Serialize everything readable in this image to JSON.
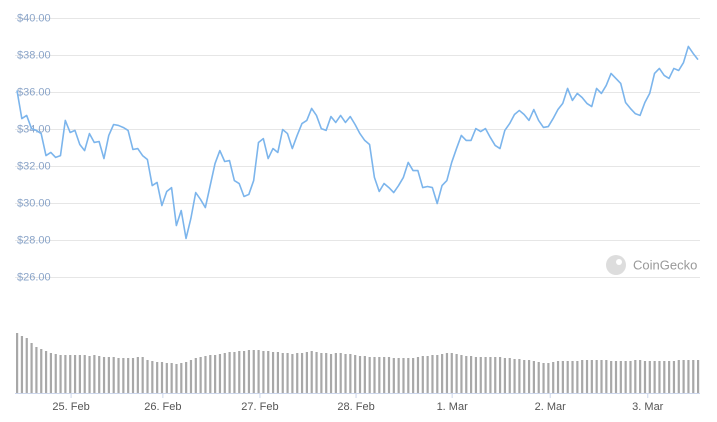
{
  "chart_data": {
    "type": "line",
    "watermark": "CoinGecko",
    "ylim": [
      25,
      41
    ],
    "yticks": [
      {
        "value": 26,
        "label": "$26.00"
      },
      {
        "value": 28,
        "label": "$28.00"
      },
      {
        "value": 30,
        "label": "$30.00"
      },
      {
        "value": 32,
        "label": "$32.00"
      },
      {
        "value": 34,
        "label": "$34.00"
      },
      {
        "value": 36,
        "label": "$36.00"
      },
      {
        "value": 38,
        "label": "$38.00"
      },
      {
        "value": 40,
        "label": "$40.00"
      }
    ],
    "xlim": [
      0,
      141
    ],
    "xticks": [
      {
        "value": 11.2,
        "label": "25. Feb"
      },
      {
        "value": 30.2,
        "label": "26. Feb"
      },
      {
        "value": 50.3,
        "label": "27. Feb"
      },
      {
        "value": 70.2,
        "label": "28. Feb"
      },
      {
        "value": 90.1,
        "label": "1. Mar"
      },
      {
        "value": 110.4,
        "label": "2. Mar"
      },
      {
        "value": 130.6,
        "label": "3. Mar"
      }
    ],
    "grid": true,
    "y2lim": [
      0,
      70
    ],
    "series": [
      {
        "color": "#7cb5ec",
        "values": [
          36.11,
          34.59,
          34.76,
          34.05,
          33.95,
          33.78,
          32.59,
          32.76,
          32.49,
          32.59,
          34.49,
          33.84,
          33.95,
          33.19,
          32.86,
          33.78,
          33.3,
          33.35,
          32.43,
          33.68,
          34.27,
          34.22,
          34.11,
          33.95,
          32.92,
          32.97,
          32.59,
          32.38,
          30.97,
          31.14,
          29.89,
          30.65,
          30.86,
          28.81,
          29.62,
          28.11,
          29.19,
          30.59,
          30.22,
          29.78,
          30.97,
          32.16,
          32.86,
          32.27,
          32.32,
          31.24,
          31.08,
          30.38,
          30.49,
          31.24,
          33.3,
          33.51,
          32.43,
          32.97,
          32.76,
          34.0,
          33.78,
          32.97,
          33.68,
          34.32,
          34.49,
          35.14,
          34.76,
          34.05,
          33.95,
          34.7,
          34.38,
          34.76,
          34.38,
          34.7,
          34.27,
          33.78,
          33.41,
          33.19,
          31.41,
          30.65,
          31.08,
          30.86,
          30.59,
          30.97,
          31.41,
          32.22,
          31.78,
          31.78,
          30.86,
          30.92,
          30.86,
          30.0,
          30.97,
          31.24,
          32.22,
          32.97,
          33.68,
          33.41,
          33.41,
          34.05,
          33.89,
          34.05,
          33.57,
          33.14,
          32.97,
          33.95,
          34.32,
          34.81,
          35.03,
          34.81,
          34.49,
          35.08,
          34.49,
          34.11,
          34.16,
          34.59,
          35.08,
          35.41,
          36.22,
          35.57,
          35.95,
          35.73,
          35.41,
          35.24,
          36.22,
          35.95,
          36.38,
          37.03,
          36.76,
          36.49,
          35.46,
          35.14,
          34.86,
          34.76,
          35.46,
          35.95,
          37.03,
          37.3,
          36.92,
          36.76,
          37.3,
          37.19,
          37.62,
          38.49,
          38.11,
          37.78
        ]
      },
      {
        "type": "bar",
        "axis": "y2",
        "color": "#a8a8a8",
        "values": [
          60,
          57,
          55,
          50,
          46,
          44,
          42,
          40,
          39,
          38,
          38,
          38,
          38,
          38,
          38,
          37,
          38,
          37,
          36,
          36,
          36,
          35,
          35,
          35,
          35,
          36,
          36,
          33,
          32,
          31,
          31,
          30,
          30,
          29,
          30,
          31,
          33,
          35,
          36,
          37,
          38,
          38,
          39,
          40,
          41,
          41,
          42,
          42,
          43,
          43,
          43,
          42,
          42,
          41,
          41,
          40,
          40,
          39,
          40,
          40,
          41,
          42,
          41,
          40,
          40,
          39,
          40,
          40,
          39,
          39,
          38,
          37,
          37,
          36,
          36,
          36,
          36,
          36,
          35,
          35,
          35,
          35,
          35,
          36,
          37,
          37,
          38,
          38,
          39,
          40,
          40,
          39,
          38,
          37,
          37,
          36,
          36,
          36,
          36,
          36,
          36,
          35,
          35,
          34,
          34,
          33,
          33,
          32,
          31,
          30,
          30,
          31,
          32,
          32,
          32,
          32,
          32,
          33,
          33,
          33,
          33,
          33,
          33,
          32,
          32,
          32,
          32,
          32,
          33,
          33,
          32,
          32,
          32,
          32,
          32,
          32,
          32,
          33,
          33,
          33,
          33,
          33
        ]
      }
    ]
  }
}
